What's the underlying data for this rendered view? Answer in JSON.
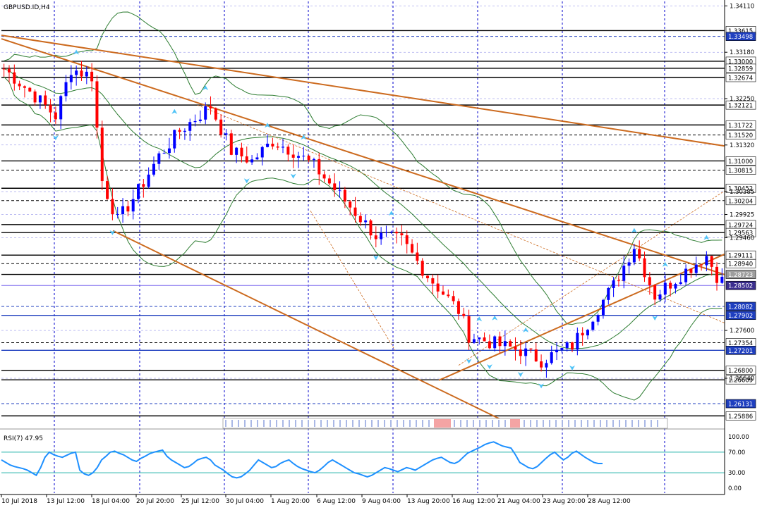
{
  "window": {
    "title": "GBPUSD.ID,H4"
  },
  "colors": {
    "background": "#ffffff",
    "grid": "#0000cc",
    "bull_candle": "#0000ff",
    "bear_candle": "#ff0000",
    "trendline": "#cc6a1e",
    "bollinger": "#2e7d32",
    "rsi_line": "#1e90ff",
    "rsi_level": "#20b2aa",
    "fractal_arrow": "#4fc3f7",
    "current_price_tag": "#3b2e8f"
  },
  "chart_data": [
    {
      "type": "candlestick",
      "symbol": "GBPUSD.ID",
      "timeframe": "H4",
      "ylim": [
        1.2575,
        1.342
      ],
      "price_axis_labels": [
        "1.34110",
        "1.33180",
        "1.32250",
        "1.31320",
        "1.30385",
        "1.29925",
        "1.29460",
        "1.27600",
        "1.26640"
      ],
      "horizontal_levels": [
        {
          "price": 1.33615,
          "label": "1.33615",
          "style": "solid",
          "tag": "white"
        },
        {
          "price": 1.33498,
          "label": "1.33498",
          "style": "dashed",
          "tag": "blue"
        },
        {
          "price": 1.33,
          "label": "1.33000",
          "style": "solid",
          "tag": "white"
        },
        {
          "price": 1.32859,
          "label": "1.32859",
          "style": "solid",
          "tag": "white"
        },
        {
          "price": 1.32674,
          "label": "1.32674",
          "style": "solid",
          "tag": "white"
        },
        {
          "price": 1.32121,
          "label": "1.32121",
          "style": "solid",
          "tag": "white"
        },
        {
          "price": 1.31722,
          "label": "1.31722",
          "style": "solid",
          "tag": "white"
        },
        {
          "price": 1.3152,
          "label": "1.31520",
          "style": "dashed",
          "tag": "white"
        },
        {
          "price": 1.31,
          "label": "1.31000",
          "style": "solid",
          "tag": "white"
        },
        {
          "price": 1.30815,
          "label": "1.30815",
          "style": "dashed",
          "tag": "white"
        },
        {
          "price": 1.30452,
          "label": "1.30452",
          "style": "solid",
          "tag": "white"
        },
        {
          "price": 1.30204,
          "label": "1.30204",
          "style": "dashed",
          "tag": "white"
        },
        {
          "price": 1.29724,
          "label": "1.29724",
          "style": "solid",
          "tag": "white"
        },
        {
          "price": 1.29563,
          "label": "1.29563",
          "style": "solid",
          "tag": "white"
        },
        {
          "price": 1.29111,
          "label": "1.29111",
          "style": "solid",
          "tag": "white"
        },
        {
          "price": 1.2894,
          "label": "1.28940",
          "style": "dashed",
          "tag": "white"
        },
        {
          "price": 1.28723,
          "label": "1.28723",
          "style": "solid",
          "tag": "grey"
        },
        {
          "price": 1.28502,
          "label": "1.28502",
          "style": "solid",
          "tag": "purple"
        },
        {
          "price": 1.28082,
          "label": "1.28082",
          "style": "dashed",
          "tag": "blue"
        },
        {
          "price": 1.27902,
          "label": "1.27902",
          "style": "solid",
          "tag": "blue"
        },
        {
          "price": 1.27354,
          "label": "1.27354",
          "style": "dashed",
          "tag": "white"
        },
        {
          "price": 1.27201,
          "label": "1.27201",
          "style": "solid",
          "tag": "blue"
        },
        {
          "price": 1.268,
          "label": "1.26800",
          "style": "solid",
          "tag": "white"
        },
        {
          "price": 1.26609,
          "label": "1.26609",
          "style": "solid",
          "tag": "white"
        },
        {
          "price": 1.26131,
          "label": "1.26131",
          "style": "dashed",
          "tag": "blue"
        },
        {
          "price": 1.25886,
          "label": "1.25886",
          "style": "solid",
          "tag": "white"
        }
      ],
      "x_axis_labels": [
        "10 Jul 2018",
        "13 Jul 12:00",
        "18 Jul 04:00",
        "20 Jul 20:00",
        "25 Jul 12:00",
        "30 Jul 04:00",
        "1 Aug 20:00",
        "6 Aug 12:00",
        "9 Aug 04:00",
        "13 Aug 20:00",
        "16 Aug 12:00",
        "21 Aug 04:00",
        "23 Aug 20:00",
        "28 Aug 12:00"
      ],
      "close_path": [
        [
          0,
          1.3285
        ],
        [
          6,
          1.323
        ],
        [
          10,
          1.319
        ],
        [
          13,
          1.3285
        ],
        [
          17,
          1.327
        ],
        [
          19,
          1.306
        ],
        [
          22,
          1.298
        ],
        [
          26,
          1.304
        ],
        [
          30,
          1.311
        ],
        [
          34,
          1.316
        ],
        [
          40,
          1.321
        ],
        [
          44,
          1.312
        ],
        [
          48,
          1.31
        ],
        [
          52,
          1.314
        ],
        [
          56,
          1.312
        ],
        [
          60,
          1.309
        ],
        [
          66,
          1.302
        ],
        [
          72,
          1.295
        ],
        [
          77,
          1.294
        ],
        [
          82,
          1.287
        ],
        [
          88,
          1.28
        ],
        [
          90,
          1.275
        ],
        [
          96,
          1.273
        ],
        [
          100,
          1.272
        ],
        [
          104,
          1.27
        ],
        [
          110,
          1.273
        ],
        [
          114,
          1.279
        ],
        [
          118,
          1.285
        ],
        [
          122,
          1.293
        ],
        [
          126,
          1.283
        ],
        [
          132,
          1.288
        ],
        [
          136,
          1.291
        ],
        [
          138,
          1.287
        ],
        [
          139,
          1.286
        ]
      ],
      "trendlines": "orange descending/ascending channel lines and dashed projection lines",
      "indicators": [
        "Bollinger Bands",
        "Fractals"
      ]
    },
    {
      "type": "line",
      "title": "RSI(7) 47.95",
      "ylim": [
        0,
        100
      ],
      "axis_labels": [
        "100.00",
        "70.00",
        "30.00",
        "0.00"
      ],
      "levels": [
        70,
        30
      ],
      "series": [
        {
          "name": "RSI(7)",
          "values": [
            55,
            50,
            45,
            42,
            40,
            38,
            35,
            30,
            25,
            40,
            60,
            70,
            65,
            62,
            60,
            64,
            68,
            70,
            35,
            28,
            25,
            30,
            40,
            55,
            62,
            70,
            72,
            68,
            65,
            60,
            55,
            52,
            58,
            62,
            67,
            70,
            72,
            74,
            62,
            55,
            50,
            45,
            40,
            42,
            48,
            55,
            58,
            60,
            55,
            45,
            40,
            35,
            28,
            22,
            20,
            22,
            28,
            35,
            45,
            55,
            50,
            45,
            40,
            42,
            48,
            52,
            55,
            48,
            42,
            38,
            35,
            32,
            30,
            35,
            42,
            50,
            55,
            50,
            45,
            40,
            35,
            30,
            28,
            25,
            22,
            25,
            30,
            35,
            40,
            38,
            35,
            32,
            36,
            40,
            38,
            35,
            40,
            45,
            50,
            55,
            58,
            60,
            55,
            50,
            48,
            52,
            60,
            68,
            72,
            76,
            80,
            85,
            88,
            90,
            86,
            82,
            80,
            78,
            65,
            50,
            45,
            40,
            38,
            42,
            50,
            58,
            65,
            70,
            62,
            55,
            60,
            68,
            72,
            66,
            60,
            55,
            50,
            48,
            47.95
          ]
        }
      ]
    }
  ]
}
